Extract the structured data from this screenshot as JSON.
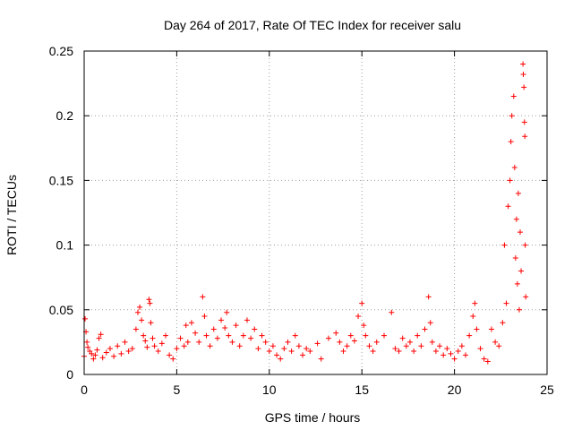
{
  "chart_data": {
    "type": "scatter",
    "title": "Day 264 of 2017, Rate Of TEC Index for receiver salu",
    "xlabel": "GPS time / hours",
    "ylabel": "ROTI / TECUs",
    "xlim": [
      0,
      25
    ],
    "ylim": [
      0,
      0.25
    ],
    "xticks": [
      0,
      5,
      10,
      15,
      20,
      25
    ],
    "xtick_labels": [
      "0",
      "5",
      "10",
      "15",
      "20",
      "25"
    ],
    "yticks": [
      0,
      0.05,
      0.1,
      0.15,
      0.2,
      0.25
    ],
    "ytick_labels": [
      "0",
      "0.05",
      "0.1",
      "0.15",
      "0.2",
      "0.25"
    ],
    "grid": true,
    "marker": "+",
    "series": [
      {
        "name": "ROTI",
        "color": "#ff0000",
        "points": [
          [
            0.0,
            0.014
          ],
          [
            0.05,
            0.043
          ],
          [
            0.1,
            0.033
          ],
          [
            0.15,
            0.025
          ],
          [
            0.2,
            0.021
          ],
          [
            0.3,
            0.018
          ],
          [
            0.4,
            0.016
          ],
          [
            0.5,
            0.012
          ],
          [
            0.6,
            0.015
          ],
          [
            0.7,
            0.019
          ],
          [
            0.8,
            0.028
          ],
          [
            0.9,
            0.031
          ],
          [
            1.0,
            0.013
          ],
          [
            1.2,
            0.017
          ],
          [
            1.4,
            0.02
          ],
          [
            1.6,
            0.014
          ],
          [
            1.8,
            0.022
          ],
          [
            2.0,
            0.016
          ],
          [
            2.2,
            0.025
          ],
          [
            2.4,
            0.018
          ],
          [
            2.6,
            0.02
          ],
          [
            2.8,
            0.035
          ],
          [
            2.9,
            0.048
          ],
          [
            3.0,
            0.052
          ],
          [
            3.1,
            0.042
          ],
          [
            3.2,
            0.03
          ],
          [
            3.3,
            0.026
          ],
          [
            3.4,
            0.021
          ],
          [
            3.5,
            0.058
          ],
          [
            3.55,
            0.055
          ],
          [
            3.6,
            0.04
          ],
          [
            3.7,
            0.028
          ],
          [
            3.8,
            0.022
          ],
          [
            4.0,
            0.018
          ],
          [
            4.2,
            0.024
          ],
          [
            4.4,
            0.03
          ],
          [
            4.6,
            0.015
          ],
          [
            4.8,
            0.012
          ],
          [
            5.0,
            0.02
          ],
          [
            5.2,
            0.028
          ],
          [
            5.4,
            0.022
          ],
          [
            5.5,
            0.038
          ],
          [
            5.6,
            0.025
          ],
          [
            5.8,
            0.04
          ],
          [
            6.0,
            0.032
          ],
          [
            6.2,
            0.025
          ],
          [
            6.4,
            0.06
          ],
          [
            6.5,
            0.045
          ],
          [
            6.6,
            0.03
          ],
          [
            6.8,
            0.022
          ],
          [
            7.0,
            0.035
          ],
          [
            7.2,
            0.028
          ],
          [
            7.4,
            0.042
          ],
          [
            7.6,
            0.036
          ],
          [
            7.7,
            0.048
          ],
          [
            7.8,
            0.03
          ],
          [
            8.0,
            0.025
          ],
          [
            8.2,
            0.038
          ],
          [
            8.4,
            0.022
          ],
          [
            8.6,
            0.03
          ],
          [
            8.8,
            0.042
          ],
          [
            9.0,
            0.028
          ],
          [
            9.2,
            0.035
          ],
          [
            9.4,
            0.02
          ],
          [
            9.6,
            0.03
          ],
          [
            9.8,
            0.025
          ],
          [
            10.0,
            0.018
          ],
          [
            10.2,
            0.022
          ],
          [
            10.4,
            0.015
          ],
          [
            10.6,
            0.012
          ],
          [
            10.8,
            0.02
          ],
          [
            11.0,
            0.025
          ],
          [
            11.2,
            0.018
          ],
          [
            11.4,
            0.03
          ],
          [
            11.6,
            0.022
          ],
          [
            11.8,
            0.015
          ],
          [
            12.0,
            0.02
          ],
          [
            12.2,
            0.018
          ],
          [
            12.6,
            0.024
          ],
          [
            12.8,
            0.012
          ],
          [
            13.2,
            0.028
          ],
          [
            13.6,
            0.032
          ],
          [
            13.8,
            0.025
          ],
          [
            14.0,
            0.018
          ],
          [
            14.2,
            0.022
          ],
          [
            14.4,
            0.03
          ],
          [
            14.6,
            0.026
          ],
          [
            14.8,
            0.045
          ],
          [
            15.0,
            0.055
          ],
          [
            15.1,
            0.038
          ],
          [
            15.2,
            0.03
          ],
          [
            15.4,
            0.022
          ],
          [
            15.6,
            0.018
          ],
          [
            15.8,
            0.025
          ],
          [
            16.2,
            0.03
          ],
          [
            16.6,
            0.048
          ],
          [
            16.8,
            0.02
          ],
          [
            17.0,
            0.018
          ],
          [
            17.2,
            0.028
          ],
          [
            17.4,
            0.022
          ],
          [
            17.6,
            0.025
          ],
          [
            17.8,
            0.018
          ],
          [
            18.0,
            0.03
          ],
          [
            18.2,
            0.022
          ],
          [
            18.4,
            0.035
          ],
          [
            18.6,
            0.06
          ],
          [
            18.7,
            0.04
          ],
          [
            18.8,
            0.025
          ],
          [
            19.0,
            0.018
          ],
          [
            19.2,
            0.022
          ],
          [
            19.4,
            0.015
          ],
          [
            19.6,
            0.02
          ],
          [
            19.8,
            0.016
          ],
          [
            20.0,
            0.012
          ],
          [
            20.2,
            0.018
          ],
          [
            20.4,
            0.022
          ],
          [
            20.6,
            0.015
          ],
          [
            20.8,
            0.03
          ],
          [
            21.0,
            0.045
          ],
          [
            21.1,
            0.055
          ],
          [
            21.2,
            0.035
          ],
          [
            21.4,
            0.02
          ],
          [
            21.6,
            0.012
          ],
          [
            21.8,
            0.01
          ],
          [
            22.0,
            0.035
          ],
          [
            22.2,
            0.025
          ],
          [
            22.4,
            0.022
          ],
          [
            22.6,
            0.04
          ],
          [
            22.7,
            0.1
          ],
          [
            22.8,
            0.055
          ],
          [
            22.9,
            0.13
          ],
          [
            23.0,
            0.15
          ],
          [
            23.05,
            0.18
          ],
          [
            23.1,
            0.2
          ],
          [
            23.2,
            0.215
          ],
          [
            23.25,
            0.16
          ],
          [
            23.3,
            0.09
          ],
          [
            23.35,
            0.12
          ],
          [
            23.4,
            0.07
          ],
          [
            23.45,
            0.14
          ],
          [
            23.5,
            0.05
          ],
          [
            23.55,
            0.11
          ],
          [
            23.6,
            0.08
          ],
          [
            23.7,
            0.24
          ],
          [
            23.72,
            0.232
          ],
          [
            23.75,
            0.222
          ],
          [
            23.78,
            0.195
          ],
          [
            23.8,
            0.184
          ],
          [
            23.82,
            0.1
          ],
          [
            23.85,
            0.06
          ]
        ]
      }
    ]
  }
}
